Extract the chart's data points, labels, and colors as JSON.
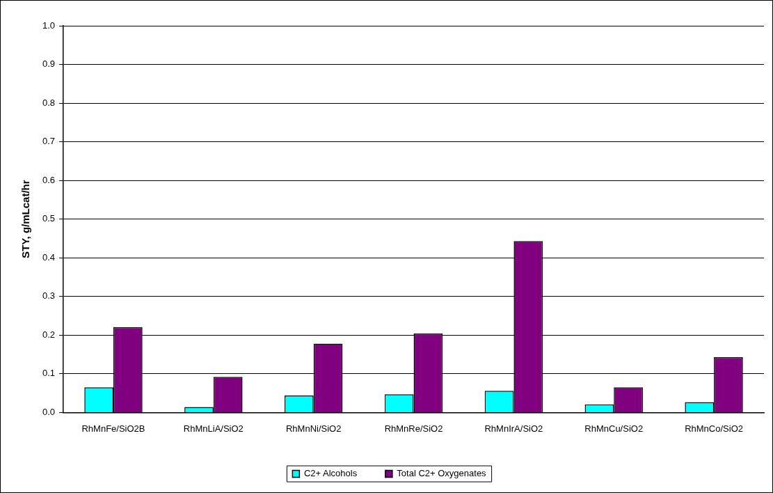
{
  "chart_data": {
    "type": "bar",
    "ylabel": "STY, g/mLcat/hr",
    "categories": [
      "RhMnFe/SiO2B",
      "RhMnLiA/SiO2",
      "RhMnNi/SiO2",
      "RhMnRe/SiO2",
      "RhMnIrA/SiO2",
      "RhMnCu/SiO2",
      "RhMnCo/SiO2"
    ],
    "series": [
      {
        "name": "C2+ Alcohols",
        "color": "#00ffff",
        "values": [
          0.065,
          0.014,
          0.044,
          0.047,
          0.056,
          0.021,
          0.027
        ]
      },
      {
        "name": "Total C2+ Oxygenates",
        "color": "#800080",
        "values": [
          0.221,
          0.092,
          0.178,
          0.204,
          0.443,
          0.065,
          0.143
        ]
      }
    ],
    "ylim": [
      0,
      1
    ],
    "yticks": [
      {
        "value": 0,
        "label": "0.0"
      },
      {
        "value": 0.1,
        "label": "0.1"
      },
      {
        "value": 0.2,
        "label": "0.2"
      },
      {
        "value": 0.3,
        "label": "0.3"
      },
      {
        "value": 0.4,
        "label": "0.4"
      },
      {
        "value": 0.5,
        "label": "0.5"
      },
      {
        "value": 0.6,
        "label": "0.6"
      },
      {
        "value": 0.7,
        "label": "0.7"
      },
      {
        "value": 0.8,
        "label": "0.8"
      },
      {
        "value": 0.9,
        "label": "0.9"
      },
      {
        "value": 1,
        "label": "1.0"
      }
    ],
    "grid": "y",
    "legend": "bottom"
  }
}
